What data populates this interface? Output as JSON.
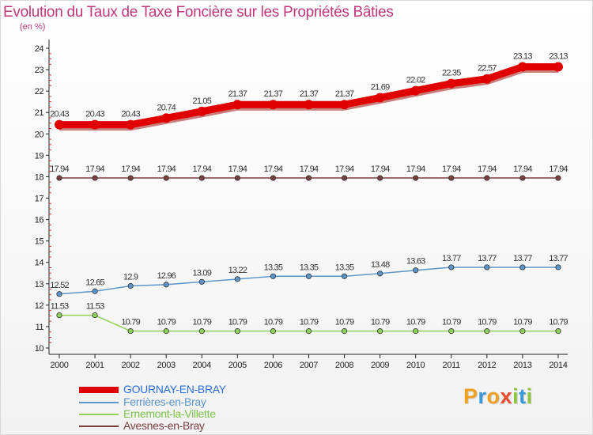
{
  "title": "Evolution du Taux de Taxe Foncière sur les Propriétés Bâties",
  "unit_label": "(en %)",
  "logo": {
    "text": "Proxiti",
    "letters": [
      "P",
      "r",
      "o",
      "x",
      "i",
      "t",
      "i"
    ],
    "colors": [
      "#f0a020",
      "#3a9ad9",
      "#f0a020",
      "#e84a2a",
      "#8cc63f",
      "#3a9ad9",
      "#8cc63f"
    ]
  },
  "chart_data": {
    "type": "line",
    "title": "Evolution du Taux de Taxe Foncière sur les Propriétés Bâties",
    "ylabel": "(en %)",
    "xlabel": "",
    "ylim": [
      10,
      24
    ],
    "yticks": [
      "10",
      "11",
      "12",
      "13",
      "14",
      "15",
      "16",
      "17",
      "18",
      "19",
      "20",
      "21",
      "22",
      "23",
      "24"
    ],
    "categories": [
      "2000",
      "2001",
      "2002",
      "2003",
      "2004",
      "2005",
      "2006",
      "2007",
      "2008",
      "2009",
      "2010",
      "2011",
      "2012",
      "2013",
      "2014"
    ],
    "grid": false,
    "legend_position": "bottom-left",
    "series": [
      {
        "name": "GOURNAY-EN-BRAY",
        "color": "#e00000",
        "label_color": "#2e6fd8",
        "values": [
          20.43,
          20.43,
          20.43,
          20.74,
          21.05,
          21.37,
          21.37,
          21.37,
          21.37,
          21.69,
          22.02,
          22.35,
          22.57,
          23.13,
          23.13
        ],
        "labels": [
          "20.43",
          "20.43",
          "20.43",
          "20.74",
          "21.05",
          "21.37",
          "21.37",
          "21.37",
          "21.37",
          "21.69",
          "22.02",
          "22.35",
          "22.57",
          "23.13",
          "23.13"
        ]
      },
      {
        "name": "Ferrières-en-Bray",
        "color": "#5b95c9",
        "label_color": "#5b95c9",
        "values": [
          12.52,
          12.65,
          12.9,
          12.96,
          13.09,
          13.22,
          13.35,
          13.35,
          13.35,
          13.48,
          13.63,
          13.77,
          13.77,
          13.77,
          13.77
        ],
        "labels": [
          "12.52",
          "12.65",
          "12.9",
          "12.96",
          "13.09",
          "13.22",
          "13.35",
          "13.35",
          "13.35",
          "13.48",
          "13.63",
          "13.77",
          "13.77",
          "13.77",
          "13.77"
        ]
      },
      {
        "name": "Ernemont-la-Villette",
        "color": "#8fd15a",
        "label_color": "#7cc04a",
        "values": [
          11.53,
          11.53,
          10.79,
          10.79,
          10.79,
          10.79,
          10.79,
          10.79,
          10.79,
          10.79,
          10.79,
          10.79,
          10.79,
          10.79,
          10.79
        ],
        "labels": [
          "11.53",
          "11.53",
          "10.79",
          "10.79",
          "10.79",
          "10.79",
          "10.79",
          "10.79",
          "10.79",
          "10.79",
          "10.79",
          "10.79",
          "10.79",
          "10.79",
          "10.79"
        ]
      },
      {
        "name": "Avesnes-en-Bray",
        "color": "#7a3f3f",
        "label_color": "#7a3f3f",
        "values": [
          17.94,
          17.94,
          17.94,
          17.94,
          17.94,
          17.94,
          17.94,
          17.94,
          17.94,
          17.94,
          17.94,
          17.94,
          17.94,
          17.94,
          17.94
        ],
        "labels": [
          "17.94",
          "17.94",
          "17.94",
          "17.94",
          "17.94",
          "17.94",
          "17.94",
          "17.94",
          "17.94",
          "17.94",
          "17.94",
          "17.94",
          "17.94",
          "17.94",
          "17.94"
        ]
      }
    ]
  }
}
